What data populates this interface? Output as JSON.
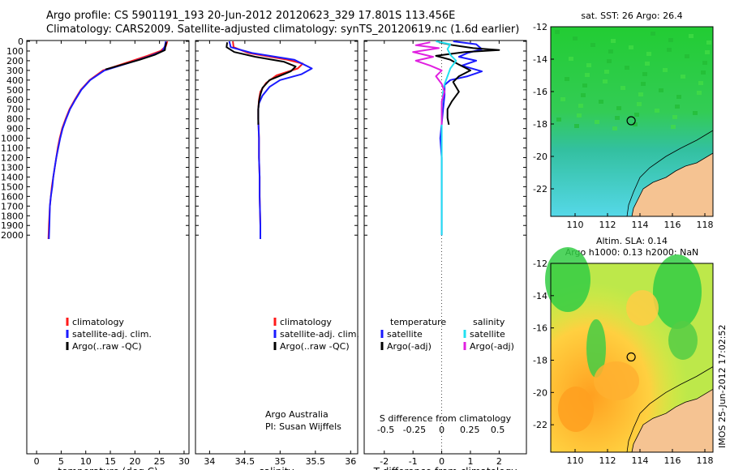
{
  "header": {
    "line1": "Argo profile: CS 5901191_193 20-Jun-2012 20120623_329 17.801S 113.456E",
    "line2": "Climatology: CARS2009. Satellite-adjusted climatology: synTS_20120619.nc (1.6d earlier)"
  },
  "footer_stamp": "IMOS 25-Jun-2012 17:02:52",
  "colors": {
    "climatology": "#ff1a1a",
    "satellite": "#1a1aff",
    "argo": "#000000",
    "sal_satellite": "#22e0f0",
    "sal_argo": "#e020e0",
    "land": "#f5c392",
    "marker": "#000000"
  },
  "chart_data": [
    {
      "id": "temperature",
      "type": "line",
      "xlabel": "temperature (deg C)",
      "ylabel": "",
      "xlim": [
        -2,
        31
      ],
      "ylim": [
        2080,
        0
      ],
      "xticks": [
        0,
        5,
        10,
        15,
        20,
        25,
        30
      ],
      "yticks": [
        0,
        100,
        200,
        300,
        400,
        500,
        600,
        700,
        800,
        900,
        1000,
        1100,
        1200,
        1300,
        1400,
        1500,
        1600,
        1700,
        1800,
        1900,
        2000
      ],
      "legend": {
        "placement": "lower-center",
        "entries": [
          "climatology",
          "satellite-adj. clim.",
          "Argo(..raw -QC)"
        ]
      },
      "series": [
        {
          "name": "climatology",
          "color_key": "climatology",
          "x": [
            26.6,
            26.3,
            25.2,
            22.5,
            19.5,
            16.5,
            13.5,
            10.8,
            9.0,
            7.8,
            6.7,
            5.9,
            5.2,
            4.7,
            4.3,
            4.0,
            3.7,
            3.4,
            3.1,
            2.9,
            2.7,
            2.5,
            2.4
          ],
          "y": [
            0,
            50,
            100,
            150,
            200,
            250,
            300,
            400,
            500,
            600,
            700,
            800,
            900,
            1000,
            1100,
            1200,
            1300,
            1400,
            1500,
            1600,
            1700,
            1900,
            2040
          ]
        },
        {
          "name": "satellite-adj. clim.",
          "color_key": "satellite",
          "x": [
            26.3,
            26.1,
            25.6,
            23.2,
            20.2,
            17.0,
            13.8,
            10.9,
            9.1,
            7.9,
            6.8,
            6.0,
            5.3,
            4.8,
            4.4,
            4.0,
            3.7,
            3.4,
            3.2,
            2.9,
            2.7,
            2.6,
            2.5
          ],
          "y": [
            0,
            50,
            100,
            150,
            200,
            250,
            300,
            400,
            500,
            600,
            700,
            800,
            900,
            1000,
            1100,
            1200,
            1300,
            1400,
            1500,
            1600,
            1700,
            1900,
            2040
          ]
        },
        {
          "name": "Argo(..raw -QC)",
          "color_key": "argo",
          "x": [
            26.4,
            26.2,
            26.1,
            24.0,
            21.0,
            17.5,
            14.0
          ],
          "y": [
            10,
            50,
            90,
            140,
            190,
            240,
            290
          ]
        }
      ]
    },
    {
      "id": "salinity",
      "type": "line",
      "xlabel": "salinity",
      "ylabel": "",
      "xlim": [
        33.8,
        36.1
      ],
      "ylim": [
        2080,
        0
      ],
      "xticks": [
        34,
        34.5,
        35,
        35.5,
        36
      ],
      "legend": {
        "placement": "lower-right",
        "entries": [
          "climatology",
          "satellite-adj. clim.",
          "Argo(..raw -QC)"
        ]
      },
      "annotation": [
        "Argo Australia",
        "PI: Susan Wijffels"
      ],
      "series": [
        {
          "name": "climatology",
          "color_key": "climatology",
          "x": [
            34.33,
            34.34,
            34.55,
            35.1,
            35.32,
            35.25,
            34.95,
            34.8,
            34.72,
            34.7,
            34.69,
            34.69,
            34.7,
            34.7,
            34.71,
            34.71,
            34.72,
            34.72
          ],
          "y": [
            0,
            60,
            120,
            190,
            230,
            280,
            350,
            430,
            520,
            600,
            700,
            800,
            1000,
            1200,
            1400,
            1600,
            1900,
            2040
          ]
        },
        {
          "name": "satellite-adj. clim.",
          "color_key": "satellite",
          "x": [
            34.28,
            34.3,
            34.6,
            35.2,
            35.45,
            35.3,
            35.0,
            34.85,
            34.75,
            34.7,
            34.69,
            34.69,
            34.7,
            34.7,
            34.71,
            34.71,
            34.72,
            34.72
          ],
          "y": [
            0,
            60,
            120,
            190,
            280,
            340,
            400,
            470,
            560,
            640,
            700,
            800,
            1000,
            1200,
            1400,
            1600,
            1900,
            2040
          ]
        },
        {
          "name": "Argo(..raw -QC)",
          "color_key": "argo",
          "x": [
            34.25,
            34.24,
            34.35,
            34.65,
            35.05,
            35.22,
            35.15,
            34.85,
            34.75,
            34.72,
            34.7,
            34.69,
            34.69,
            34.69
          ],
          "y": [
            10,
            60,
            110,
            160,
            210,
            260,
            310,
            400,
            480,
            550,
            620,
            700,
            800,
            860
          ]
        }
      ]
    },
    {
      "id": "difference",
      "type": "line",
      "xlabel": "T difference from climatology",
      "top_axis_label": "S difference from climatology",
      "xlim": [
        -2.7,
        2.95
      ],
      "ylim": [
        2080,
        0
      ],
      "xticks": [
        -2,
        -1,
        0,
        1,
        2
      ],
      "top_ticks": [
        "-0.5",
        "-0.25",
        "0",
        "0.25",
        "0.5"
      ],
      "legend": {
        "placement": "lower-center",
        "columns": [
          {
            "title": "temperature",
            "entries": [
              "satellite",
              "Argo(-adj)"
            ]
          },
          {
            "title": "salinity",
            "entries": [
              "satellite",
              "Argo(-adj)"
            ]
          }
        ]
      },
      "series": [
        {
          "name": "temperature satellite",
          "color_key": "satellite",
          "x": [
            0.4,
            1.2,
            1.4,
            0.9,
            0.6,
            1.2,
            0.7,
            1.4,
            0.9,
            0.3,
            0.1,
            0.1,
            0.05,
            -0.05,
            0.0,
            0.0,
            0.0
          ],
          "y": [
            0,
            30,
            80,
            120,
            160,
            200,
            250,
            310,
            360,
            400,
            450,
            550,
            700,
            1000,
            1200,
            1600,
            2000
          ]
        },
        {
          "name": "temperature Argo(-adj)",
          "color_key": "argo",
          "x": [
            -0.1,
            0.4,
            1.1,
            2.0,
            0.8,
            -0.2,
            0.3,
            0.6,
            1.0,
            0.6,
            0.4,
            0.6,
            0.35,
            0.2,
            0.2,
            0.25
          ],
          "y": [
            10,
            40,
            70,
            90,
            110,
            150,
            190,
            240,
            300,
            360,
            420,
            520,
            620,
            700,
            790,
            860
          ]
        },
        {
          "name": "salinity satellite",
          "color_key": "sal_satellite",
          "x": [
            -0.2,
            0.3,
            0.2,
            0.3,
            0.5,
            0.3,
            0.2,
            0.1,
            0.05,
            0.0,
            0.0,
            0.0,
            0.0,
            0.0
          ],
          "y": [
            0,
            30,
            80,
            140,
            200,
            280,
            360,
            440,
            520,
            700,
            1000,
            1400,
            1700,
            2000
          ]
        },
        {
          "name": "salinity Argo(-adj)",
          "color_key": "sal_argo",
          "x": [
            -0.4,
            -0.9,
            -0.1,
            -1.0,
            -0.3,
            -0.9,
            -0.4,
            0.0,
            -0.2,
            0.0,
            0.1,
            0.0,
            0.0
          ],
          "y": [
            10,
            40,
            70,
            110,
            160,
            200,
            250,
            300,
            360,
            440,
            520,
            620,
            860
          ]
        }
      ]
    }
  ],
  "maps": [
    {
      "id": "sst-map",
      "title_lines": [
        "sat. SST: 26 Argo: 26.4"
      ],
      "xlim": [
        108.5,
        118.5
      ],
      "ylim": [
        -23.7,
        -12
      ],
      "xticks": [
        "110",
        "112",
        "114",
        "116",
        "118"
      ],
      "yticks": [
        "-12",
        "-14",
        "-16",
        "-18",
        "-20",
        "-22"
      ],
      "marker": {
        "lon": 113.456,
        "lat": -17.801
      }
    },
    {
      "id": "sla-map",
      "title_lines": [
        "Altim. SLA: 0.14",
        "Argo h1000: 0.13 h2000: NaN"
      ],
      "xlim": [
        108.5,
        118.5
      ],
      "ylim": [
        -23.7,
        -12
      ],
      "xticks": [
        "110",
        "112",
        "114",
        "116",
        "118"
      ],
      "yticks": [
        "-12",
        "-14",
        "-16",
        "-18",
        "-20",
        "-22"
      ],
      "marker": {
        "lon": 113.456,
        "lat": -17.801
      }
    }
  ]
}
